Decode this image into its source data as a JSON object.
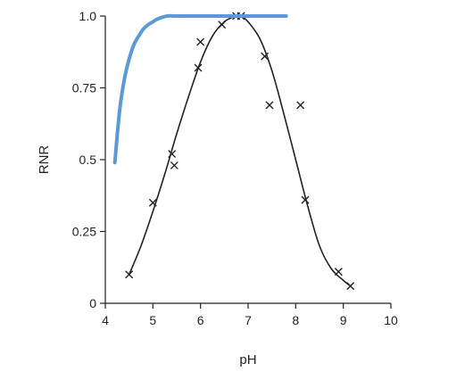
{
  "chart_data": {
    "type": "scatter",
    "title": "",
    "xlabel": "pH",
    "ylabel": "RNR",
    "xlim": [
      4,
      10
    ],
    "ylim": [
      0,
      1.0
    ],
    "x_ticks": [
      4,
      5,
      6,
      7,
      8,
      9,
      10
    ],
    "x_tick_labels": [
      "4",
      "5",
      "6",
      "7",
      "8",
      "9",
      "10"
    ],
    "y_ticks": [
      0,
      0.25,
      0.5,
      0.75,
      1.0
    ],
    "y_tick_labels": [
      "0",
      "0.25",
      "0.5",
      "0.75",
      "1.0"
    ],
    "grid": false,
    "series": [
      {
        "kind": "points",
        "marker": "x",
        "color": "#222222",
        "x": [
          4.5,
          5.0,
          5.4,
          5.45,
          5.95,
          6.0,
          6.45,
          6.75,
          6.85,
          7.35,
          7.45,
          8.1,
          8.2,
          8.9,
          9.15
        ],
        "y": [
          0.1,
          0.35,
          0.52,
          0.48,
          0.82,
          0.91,
          0.97,
          1.0,
          1.0,
          0.86,
          0.69,
          0.69,
          0.36,
          0.11,
          0.06
        ]
      },
      {
        "kind": "fit-curve",
        "color": "#222222",
        "x": [
          4.5,
          4.75,
          5.0,
          5.25,
          5.5,
          5.75,
          6.0,
          6.25,
          6.5,
          6.75,
          6.85,
          7.0,
          7.25,
          7.5,
          7.75,
          8.0,
          8.25,
          8.5,
          8.75,
          9.0,
          9.15
        ],
        "y": [
          0.1,
          0.2,
          0.32,
          0.45,
          0.59,
          0.72,
          0.84,
          0.93,
          0.98,
          1.0,
          1.0,
          0.98,
          0.92,
          0.81,
          0.66,
          0.5,
          0.34,
          0.2,
          0.12,
          0.08,
          0.06
        ]
      },
      {
        "kind": "line",
        "color": "#5b9bd5",
        "x": [
          4.2,
          4.3,
          4.4,
          4.5,
          4.6,
          4.7,
          4.8,
          4.9,
          5.0,
          5.1,
          5.3,
          5.5,
          6.0,
          7.0,
          7.8
        ],
        "y": [
          0.49,
          0.67,
          0.78,
          0.85,
          0.9,
          0.93,
          0.955,
          0.97,
          0.98,
          0.99,
          1.0,
          1.0,
          1.0,
          1.0,
          1.0
        ]
      }
    ]
  }
}
